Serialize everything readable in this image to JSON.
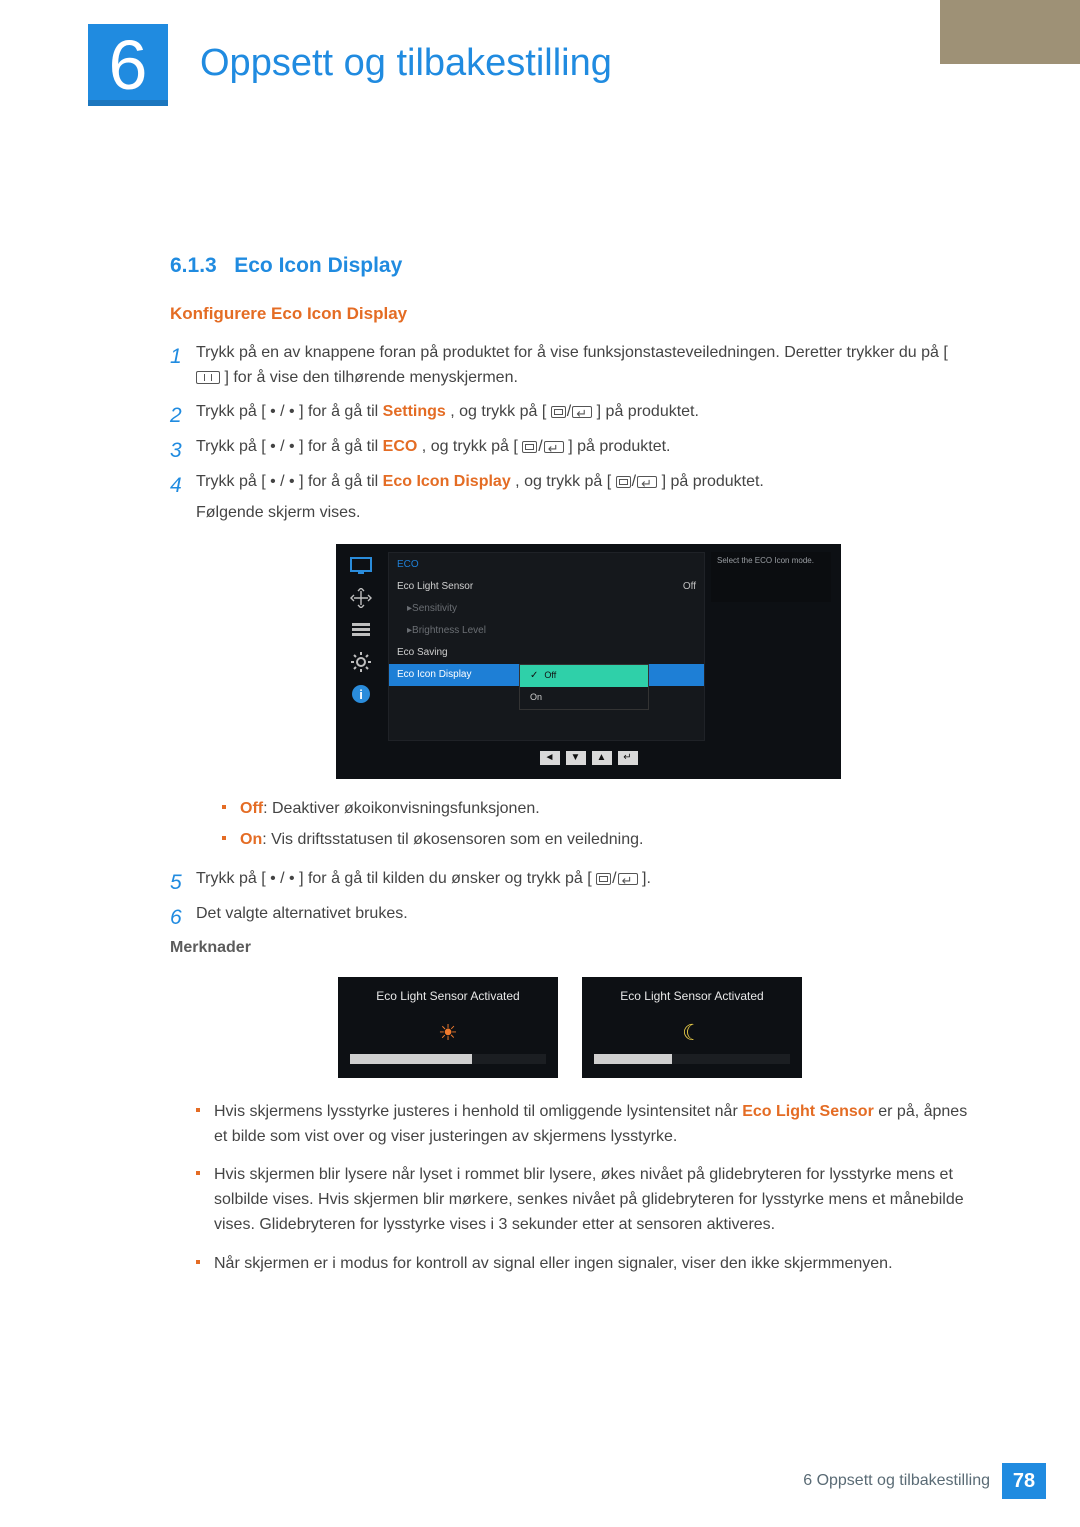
{
  "chapter": {
    "number": "6",
    "title": "Oppsett og tilbakestilling"
  },
  "section": {
    "number": "6.1.3",
    "title": "Eco Icon Display"
  },
  "subhead": "Konfigurere Eco Icon Display",
  "steps": {
    "s1a": "Trykk på en av knappene foran på produktet for å vise funksjonstasteveiledningen. Deretter trykker du på [",
    "s1b": "] for å vise den tilhørende menyskjermen.",
    "s2a": "Trykk på [ • / • ] for å gå til ",
    "s2_kw": "Settings",
    "s2b": ", og trykk på [",
    "s2c": "] på produktet.",
    "s3a": "Trykk på [ • / • ] for å gå til ",
    "s3_kw": "ECO",
    "s3b": ", og trykk på [",
    "s3c": "] på produktet.",
    "s4a": "Trykk på [ • / • ] for å gå til ",
    "s4_kw": "Eco Icon Display",
    "s4b": ", og trykk på [",
    "s4c": "] på produktet.",
    "s4d": "Følgende skjerm vises.",
    "s5a": "Trykk på [ • / • ] for å gå til kilden du ønsker og trykk på [",
    "s5b": "].",
    "s6": "Det valgte alternativet brukes."
  },
  "osd": {
    "header": "ECO",
    "rows": {
      "r1": "Eco Light Sensor",
      "r1v": "Off",
      "r2": "Sensitivity",
      "r3": "Brightness Level",
      "r4": "Eco Saving",
      "r5": "Eco Icon Display"
    },
    "popup": {
      "opt1": "Off",
      "opt2": "On"
    },
    "tip": "Select the ECO Icon mode.",
    "nav": {
      "k1": "◄",
      "k2": "▼",
      "k3": "▲",
      "k4": "↵"
    },
    "accent": "#1e7fd6",
    "highlight": "#2fd0a9",
    "bg": "#0d1014"
  },
  "opt_desc": {
    "off_kw": "Off",
    "off": ": Deaktiver økoikonvisningsfunksjonen.",
    "on_kw": "On",
    "on": ": Vis driftsstatusen til økosensoren som en veiledning."
  },
  "notes_head": "Merknader",
  "sensor": {
    "t1": "Eco Light Sensor Activated",
    "t2": "Eco Light Sensor Activated",
    "fill1": 62,
    "fill2": 40
  },
  "notes": {
    "n1a": "Hvis skjermens lysstyrke justeres i henhold til omliggende lysintensitet når ",
    "n1_kw": "Eco Light Sensor",
    "n1b": " er på, åpnes et bilde som vist over og viser justeringen av skjermens lysstyrke.",
    "n2": "Hvis skjermen blir lysere når lyset i rommet blir lysere, økes nivået på glidebryteren for lysstyrke mens et solbilde vises. Hvis skjermen blir mørkere, senkes nivået på glidebryteren for lysstyrke mens et månebilde vises. Glidebryteren for lysstyrke vises i 3 sekunder etter at sensoren aktiveres.",
    "n3": "Når skjermen er i modus for kontroll av signal eller ingen signaler, viser den ikke skjermmenyen."
  },
  "footer": {
    "label": "6 Oppsett og tilbakestilling",
    "page": "78"
  }
}
